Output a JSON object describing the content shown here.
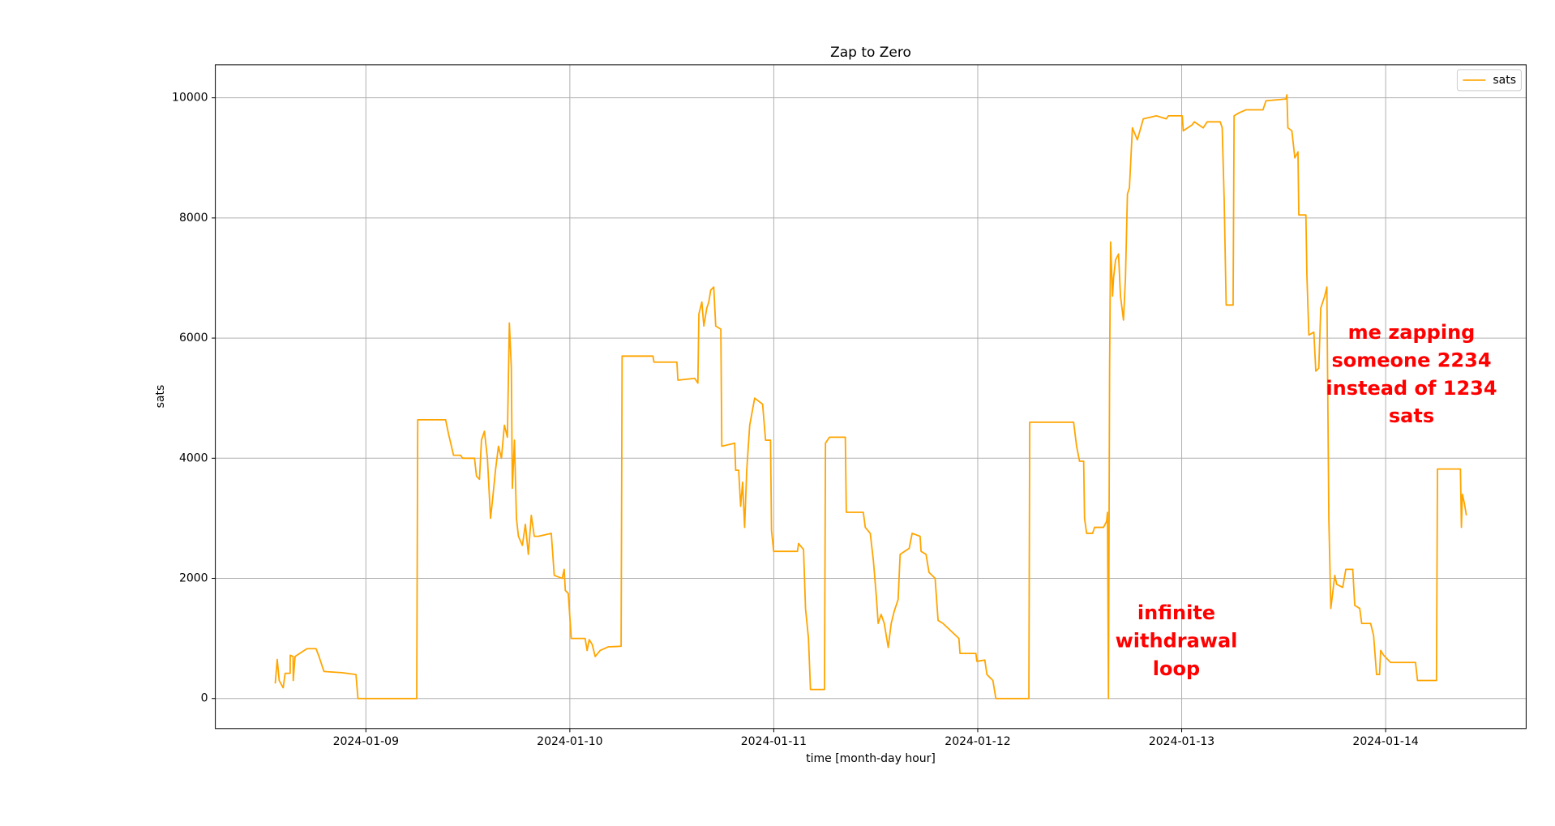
{
  "chart_data": {
    "type": "line",
    "title": "Zap to Zero",
    "xlabel": "time [month-day hour]",
    "ylabel": "sats",
    "xlim": [
      "2024-01-08T06:17",
      "2024-01-14T16:32"
    ],
    "xticks": [
      "2024-01-09",
      "2024-01-10",
      "2024-01-11",
      "2024-01-12",
      "2024-01-13",
      "2024-01-14"
    ],
    "ylim": [
      -500,
      10550
    ],
    "yticks": [
      0,
      2000,
      4000,
      6000,
      8000,
      10000
    ],
    "grid": true,
    "legend": "upper right",
    "annotations": [
      {
        "lines": [
          "infinite",
          "withdrawal",
          "loop"
        ]
      },
      {
        "lines": [
          "me zapping",
          "someone 2234",
          "instead of 1234",
          "sats"
        ]
      }
    ],
    "x": [
      "2024-01-08T13:20",
      "2024-01-08T13:34",
      "2024-01-08T13:48",
      "2024-01-08T14:16",
      "2024-01-08T14:30",
      "2024-01-08T15:05",
      "2024-01-08T15:06",
      "2024-01-08T15:26",
      "2024-01-08T15:27",
      "2024-01-08T15:40",
      "2024-01-08T16:44",
      "2024-01-08T17:05",
      "2024-01-08T18:08",
      "2024-01-08T18:29",
      "2024-01-08T19:04",
      "2024-01-08T21:11",
      "2024-01-08T22:50",
      "2024-01-08T23:04",
      "2024-01-09T05:59",
      "2024-01-09T06:06",
      "2024-01-09T09:23",
      "2024-01-09T09:44",
      "2024-01-09T10:19",
      "2024-01-09T11:09",
      "2024-01-09T11:23",
      "2024-01-09T12:47",
      "2024-01-09T13:01",
      "2024-01-09T13:22",
      "2024-01-09T13:36",
      "2024-01-09T13:57",
      "2024-01-09T14:18",
      "2024-01-09T14:40",
      "2024-01-09T14:54",
      "2024-01-09T15:15",
      "2024-01-09T15:36",
      "2024-01-09T15:57",
      "2024-01-09T16:18",
      "2024-01-09T16:39",
      "2024-01-09T16:53",
      "2024-01-09T17:07",
      "2024-01-09T17:14",
      "2024-01-09T17:29",
      "2024-01-09T17:43",
      "2024-01-09T17:57",
      "2024-01-09T18:25",
      "2024-01-09T18:46",
      "2024-01-09T19:07",
      "2024-01-09T19:28",
      "2024-01-09T19:49",
      "2024-01-09T20:18",
      "2024-01-09T21:49",
      "2024-01-09T22:10",
      "2024-01-09T23:06",
      "2024-01-09T23:20",
      "2024-01-09T23:28",
      "2024-01-09T23:49",
      "2024-01-10T00:10",
      "2024-01-10T01:48",
      "2024-01-10T02:02",
      "2024-01-10T02:17",
      "2024-01-10T02:38",
      "2024-01-10T02:59",
      "2024-01-10T03:34",
      "2024-01-10T04:30",
      "2024-01-10T06:02",
      "2024-01-10T06:09",
      "2024-01-10T09:47",
      "2024-01-10T09:54",
      "2024-01-10T12:36",
      "2024-01-10T12:43",
      "2024-01-10T14:42",
      "2024-01-10T15:04",
      "2024-01-10T15:11",
      "2024-01-10T15:32",
      "2024-01-10T15:46",
      "2024-01-10T16:07",
      "2024-01-10T16:21",
      "2024-01-10T16:35",
      "2024-01-10T16:56",
      "2024-01-10T17:10",
      "2024-01-10T17:46",
      "2024-01-10T17:53",
      "2024-01-10T19:24",
      "2024-01-10T19:31",
      "2024-01-10T19:52",
      "2024-01-10T20:06",
      "2024-01-10T20:20",
      "2024-01-10T20:34",
      "2024-01-10T20:49",
      "2024-01-10T21:10",
      "2024-01-10T21:45",
      "2024-01-10T22:41",
      "2024-01-10T23:02",
      "2024-01-10T23:37",
      "2024-01-10T23:44",
      "2024-01-10T23:59",
      "2024-01-11T02:47",
      "2024-01-11T02:55",
      "2024-01-11T03:30",
      "2024-01-11T03:44",
      "2024-01-11T04:05",
      "2024-01-11T04:19",
      "2024-01-11T05:58",
      "2024-01-11T06:05",
      "2024-01-11T06:33",
      "2024-01-11T08:25",
      "2024-01-11T08:32",
      "2024-01-11T10:32",
      "2024-01-11T10:46",
      "2024-01-11T11:21",
      "2024-01-11T11:43",
      "2024-01-11T12:04",
      "2024-01-11T12:17",
      "2024-01-11T12:38",
      "2024-01-11T13:00",
      "2024-01-11T13:28",
      "2024-01-11T13:49",
      "2024-01-11T14:10",
      "2024-01-11T14:38",
      "2024-01-11T14:52",
      "2024-01-11T15:56",
      "2024-01-11T16:17",
      "2024-01-11T17:13",
      "2024-01-11T17:20",
      "2024-01-11T17:55",
      "2024-01-11T18:16",
      "2024-01-11T18:59",
      "2024-01-11T19:20",
      "2024-01-11T19:55",
      "2024-01-11T21:47",
      "2024-01-11T21:55",
      "2024-01-11T23:47",
      "2024-01-11T23:54",
      "2024-01-12T00:50",
      "2024-01-12T01:05",
      "2024-01-12T01:47",
      "2024-01-12T02:08",
      "2024-01-12T06:01",
      "2024-01-12T06:07",
      "2024-01-12T11:17",
      "2024-01-12T11:38",
      "2024-01-12T11:59",
      "2024-01-12T12:28",
      "2024-01-12T12:34",
      "2024-01-12T12:49",
      "2024-01-12T13:31",
      "2024-01-12T13:45",
      "2024-01-12T14:48",
      "2024-01-12T15:10",
      "2024-01-12T15:16",
      "2024-01-12T15:23",
      "2024-01-12T15:31",
      "2024-01-12T15:38",
      "2024-01-12T15:52",
      "2024-01-12T15:59",
      "2024-01-12T16:13",
      "2024-01-12T16:34",
      "2024-01-12T16:48",
      "2024-01-12T17:09",
      "2024-01-12T17:23",
      "2024-01-12T17:37",
      "2024-01-12T17:51",
      "2024-01-12T18:12",
      "2024-01-12T18:47",
      "2024-01-12T19:29",
      "2024-01-12T21:01",
      "2024-01-12T22:11",
      "2024-01-12T22:26",
      "2024-01-13T00:04",
      "2024-01-13T00:11",
      "2024-01-13T01:14",
      "2024-01-13T01:29",
      "2024-01-13T02:32",
      "2024-01-13T03:00",
      "2024-01-13T04:32",
      "2024-01-13T04:46",
      "2024-01-13T05:00",
      "2024-01-13T05:14",
      "2024-01-13T06:03",
      "2024-01-13T06:10",
      "2024-01-13T06:45",
      "2024-01-13T07:35",
      "2024-01-13T09:34",
      "2024-01-13T09:55",
      "2024-01-13T12:16",
      "2024-01-13T12:23",
      "2024-01-13T12:30",
      "2024-01-13T12:58",
      "2024-01-13T13:19",
      "2024-01-13T13:41",
      "2024-01-13T13:47",
      "2024-01-13T14:37",
      "2024-01-13T14:44",
      "2024-01-13T14:58",
      "2024-01-13T15:33",
      "2024-01-13T15:47",
      "2024-01-13T16:08",
      "2024-01-13T16:22",
      "2024-01-13T16:50",
      "2024-01-13T17:05",
      "2024-01-13T17:19",
      "2024-01-13T17:33",
      "2024-01-13T18:01",
      "2024-01-13T18:15",
      "2024-01-13T18:57",
      "2024-01-13T19:19",
      "2024-01-13T20:08",
      "2024-01-13T20:22",
      "2024-01-13T20:57",
      "2024-01-13T21:11",
      "2024-01-13T22:14",
      "2024-01-13T22:35",
      "2024-01-13T22:56",
      "2024-01-13T23:17",
      "2024-01-13T23:25",
      "2024-01-13T23:46",
      "2024-01-14T00:35",
      "2024-01-14T03:31",
      "2024-01-14T03:45",
      "2024-01-14T05:59",
      "2024-01-14T06:06",
      "2024-01-14T08:48",
      "2024-01-14T08:55",
      "2024-01-14T09:02",
      "2024-01-14T09:16",
      "2024-01-14T09:30"
    ],
    "series": [
      {
        "name": "sats",
        "color": "#ffa500",
        "values": [
          250,
          650,
          300,
          180,
          420,
          420,
          720,
          700,
          300,
          700,
          800,
          830,
          830,
          700,
          450,
          430,
          400,
          0,
          0,
          4640,
          4640,
          4400,
          4050,
          4050,
          4000,
          4000,
          3700,
          3650,
          4300,
          4450,
          4000,
          3000,
          3300,
          3800,
          4200,
          4000,
          4550,
          4350,
          6250,
          5500,
          3500,
          4300,
          3000,
          2700,
          2550,
          2900,
          2400,
          3050,
          2700,
          2700,
          2750,
          2050,
          2000,
          2150,
          1800,
          1750,
          1000,
          1000,
          800,
          980,
          900,
          700,
          800,
          860,
          870,
          5700,
          5700,
          5600,
          5600,
          5300,
          5330,
          5250,
          6400,
          6600,
          6200,
          6500,
          6600,
          6800,
          6850,
          6200,
          6150,
          4200,
          4250,
          3800,
          3800,
          3200,
          3600,
          2850,
          3800,
          4550,
          5000,
          4900,
          4300,
          4300,
          2800,
          2450,
          2450,
          2580,
          2480,
          1500,
          1000,
          150,
          150,
          4250,
          4350,
          4350,
          3100,
          3100,
          2850,
          2750,
          2300,
          1700,
          1250,
          1400,
          1250,
          850,
          1250,
          1450,
          1650,
          2400,
          2500,
          2750,
          2700,
          2450,
          2400,
          2100,
          2000,
          1300,
          1250,
          1000,
          750,
          750,
          620,
          640,
          400,
          300,
          0,
          0,
          4600,
          4600,
          4200,
          3950,
          3950,
          3000,
          2750,
          2750,
          2850,
          2850,
          2950,
          3100,
          0,
          5500,
          7600,
          6700,
          7000,
          7300,
          7400,
          6700,
          6300,
          7000,
          8400,
          8500,
          9500,
          9300,
          9650,
          9700,
          9650,
          9700,
          9700,
          9450,
          9550,
          9600,
          9500,
          9600,
          9600,
          9500,
          8300,
          6550,
          6550,
          9700,
          9750,
          9800,
          9800,
          9950,
          9980,
          10050,
          9500,
          9450,
          9000,
          9100,
          8050,
          8050,
          7050,
          6050,
          6100,
          5450,
          5500,
          6500,
          6700,
          6850,
          3000,
          1500,
          2050,
          1900,
          1850,
          2150,
          2150,
          1550,
          1500,
          1250,
          1250,
          1050,
          400,
          400,
          800,
          720,
          600,
          600,
          300,
          300,
          3820,
          3820,
          2850,
          3400,
          3250,
          3050
        ]
      }
    ]
  }
}
